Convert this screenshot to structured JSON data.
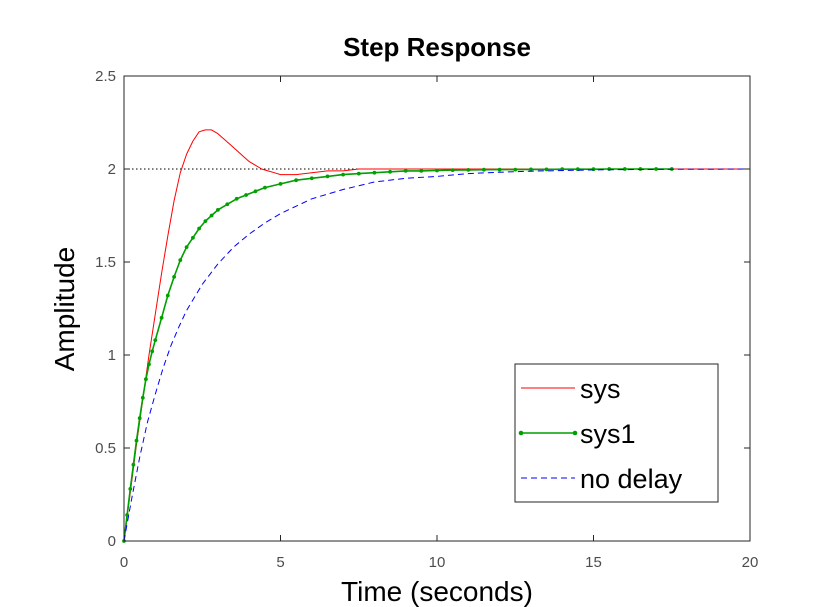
{
  "chart_data": {
    "type": "line",
    "title": "Step Response",
    "xlabel": "Time (seconds)",
    "ylabel": "Amplitude",
    "xlim": [
      0,
      20
    ],
    "ylim": [
      0,
      2.5
    ],
    "x_ticks": [
      "0",
      "5",
      "10",
      "15",
      "20"
    ],
    "y_ticks": [
      "0",
      "0.5",
      "1",
      "1.5",
      "2",
      "2.5"
    ],
    "x_tick_values": [
      0,
      5,
      10,
      15,
      20
    ],
    "y_tick_values": [
      0,
      0.5,
      1,
      1.5,
      2,
      2.5
    ],
    "grid": false,
    "steady_state_line": {
      "y": 2,
      "style": "dotted",
      "color": "#000000"
    },
    "legend": {
      "position": "bottom-right"
    },
    "series": [
      {
        "name": "sys",
        "color": "#ff0000",
        "style": "solid",
        "x": [
          0,
          0.2,
          0.4,
          0.6,
          0.8,
          1.0,
          1.2,
          1.4,
          1.6,
          1.8,
          2.0,
          2.2,
          2.4,
          2.6,
          2.8,
          3.0,
          3.2,
          3.4,
          3.6,
          3.8,
          4.0,
          4.2,
          4.4,
          4.6,
          4.8,
          5.0,
          5.5,
          6.0,
          6.5,
          7.0,
          7.5,
          8.0,
          9.0,
          10.0,
          12.0,
          14.0,
          16.0,
          18.0,
          20.0
        ],
        "values": [
          0,
          0.26,
          0.52,
          0.76,
          1.0,
          1.22,
          1.44,
          1.64,
          1.83,
          1.98,
          2.08,
          2.15,
          2.2,
          2.21,
          2.21,
          2.19,
          2.16,
          2.13,
          2.1,
          2.07,
          2.04,
          2.02,
          2.0,
          1.99,
          1.98,
          1.97,
          1.97,
          1.98,
          1.99,
          1.99,
          2.0,
          2.0,
          2.0,
          2.0,
          2.0,
          2.0,
          2.0,
          2.0,
          2.0
        ]
      },
      {
        "name": "sys1",
        "color": "#00a000",
        "style": "solid-dots",
        "x": [
          0,
          0.1,
          0.2,
          0.3,
          0.4,
          0.5,
          0.6,
          0.7,
          0.8,
          0.9,
          1.0,
          1.2,
          1.4,
          1.6,
          1.8,
          2.0,
          2.2,
          2.4,
          2.6,
          2.8,
          3.0,
          3.3,
          3.6,
          3.9,
          4.2,
          4.5,
          5.0,
          5.5,
          6.0,
          6.5,
          7.0,
          7.5,
          8.0,
          8.5,
          9.0,
          9.5,
          10.0,
          10.5,
          11.0,
          11.5,
          12.0,
          12.5,
          13.0,
          13.5,
          14.0,
          14.5,
          15.0,
          15.5,
          16.0,
          16.5,
          17.0,
          17.5
        ],
        "values": [
          0,
          0.14,
          0.28,
          0.41,
          0.54,
          0.66,
          0.77,
          0.87,
          0.95,
          1.02,
          1.08,
          1.2,
          1.32,
          1.42,
          1.51,
          1.58,
          1.63,
          1.68,
          1.72,
          1.75,
          1.78,
          1.81,
          1.84,
          1.86,
          1.88,
          1.9,
          1.92,
          1.94,
          1.95,
          1.96,
          1.97,
          1.975,
          1.98,
          1.985,
          1.99,
          1.99,
          1.992,
          1.994,
          1.995,
          1.996,
          1.997,
          1.997,
          1.998,
          1.998,
          1.999,
          1.999,
          1.999,
          2.0,
          2.0,
          2.0,
          2.0,
          2.0
        ]
      },
      {
        "name": "no delay",
        "color": "#0000ff",
        "style": "dashed",
        "x": [
          0,
          0.25,
          0.5,
          0.75,
          1.0,
          1.25,
          1.5,
          1.75,
          2.0,
          2.5,
          3.0,
          3.5,
          4.0,
          4.5,
          5.0,
          5.5,
          6.0,
          7.0,
          8.0,
          9.0,
          10.0,
          11.0,
          12.0,
          13.0,
          14.0,
          15.0,
          16.0,
          17.0,
          18.0,
          19.0,
          20.0
        ],
        "values": [
          0,
          0.23,
          0.45,
          0.64,
          0.79,
          0.93,
          1.05,
          1.15,
          1.24,
          1.38,
          1.49,
          1.58,
          1.65,
          1.71,
          1.76,
          1.8,
          1.84,
          1.89,
          1.93,
          1.95,
          1.96,
          1.975,
          1.983,
          1.988,
          1.992,
          1.995,
          1.997,
          1.998,
          1.999,
          1.999,
          2.0
        ]
      }
    ]
  }
}
